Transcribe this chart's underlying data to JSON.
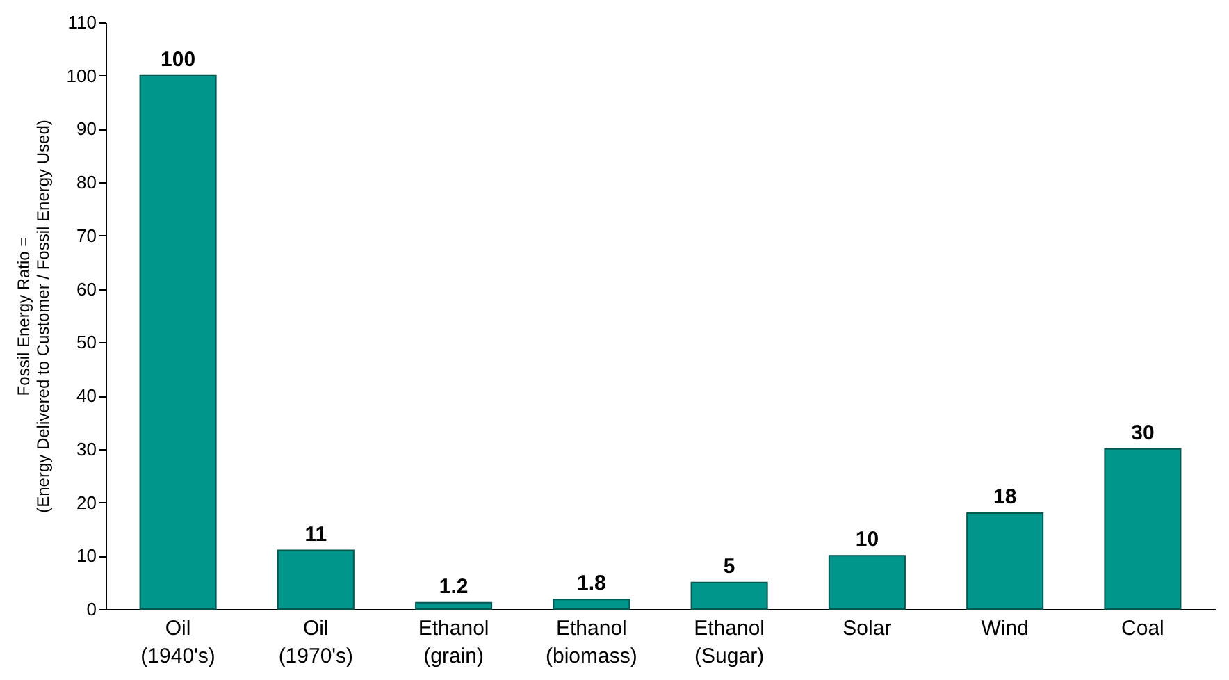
{
  "chart_data": {
    "type": "bar",
    "ylabel": "Fossil Energy Ratio =\n(Energy Delivered to Customer / Fossil Energy Used)",
    "categories": [
      "Oil\n(1940's)",
      "Oil\n(1970's)",
      "Ethanol\n(grain)",
      "Ethanol\n(biomass)",
      "Ethanol\n(Sugar)",
      "Solar",
      "Wind",
      "Coal"
    ],
    "values": [
      100,
      11,
      1.2,
      1.8,
      5,
      10,
      18,
      30
    ],
    "color": "#00968c",
    "ylim": [
      0,
      110
    ],
    "yticks": [
      0,
      10,
      20,
      30,
      40,
      50,
      60,
      70,
      80,
      90,
      100,
      110
    ],
    "data_labels": true,
    "grid": false
  }
}
